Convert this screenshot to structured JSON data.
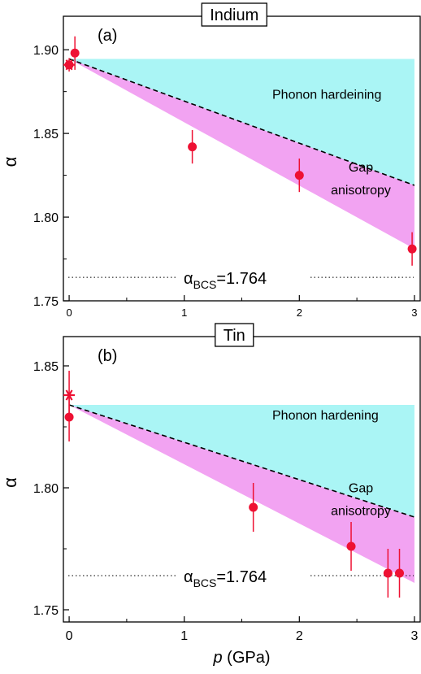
{
  "chart_data": [
    {
      "type": "line",
      "panel_label": "(a)",
      "title": "Indium",
      "xlabel": "",
      "ylabel": "α",
      "xlim": [
        -0.05,
        3.05
      ],
      "ylim": [
        1.75,
        1.92
      ],
      "xticks": [
        0,
        1,
        2,
        3
      ],
      "yticks": [
        1.75,
        1.8,
        1.85,
        1.9
      ],
      "ytick_labels": [
        "1.75",
        "1.80",
        "1.85",
        "1.90"
      ],
      "regions": [
        {
          "name": "Phonon hardeining",
          "color": "#aaf5f5",
          "polygon": [
            [
              0,
              1.8945
            ],
            [
              3,
              1.8945
            ],
            [
              3,
              1.819
            ]
          ]
        },
        {
          "name": "Gap anisotropy",
          "color": "#f2a3f2",
          "polygon": [
            [
              0,
              1.8945
            ],
            [
              3,
              1.819
            ],
            [
              3,
              1.781
            ]
          ]
        }
      ],
      "region_labels": [
        "Phonon hardeining",
        "Gap",
        "anisotropy"
      ],
      "dashed_line": {
        "x": [
          0,
          3
        ],
        "y": [
          1.8945,
          1.819
        ]
      },
      "bcs_line": {
        "y": 1.764,
        "label_main": "α",
        "label_sub": "BCS",
        "label_value": "=1.764"
      },
      "series": [
        {
          "marker": "circle",
          "color": "#ee1133",
          "x": [
            0,
            0.05,
            1.07,
            2.0,
            2.98
          ],
          "y": [
            1.891,
            1.898,
            1.842,
            1.825,
            1.781
          ],
          "yerr": [
            0.004,
            0.01,
            0.01,
            0.01,
            0.01
          ]
        },
        {
          "marker": "star",
          "color": "#ee1133",
          "x": [
            0
          ],
          "y": [
            1.891
          ],
          "yerr": [
            0
          ]
        }
      ]
    },
    {
      "type": "line",
      "panel_label": "(b)",
      "title": "Tin",
      "xlabel": "p (GPa)",
      "xlabel_italic": "p",
      "xlabel_rest": " (GPa)",
      "ylabel": "α",
      "xlim": [
        -0.05,
        3.05
      ],
      "ylim": [
        1.745,
        1.862
      ],
      "xticks": [
        0,
        1,
        2,
        3
      ],
      "yticks": [
        1.75,
        1.8,
        1.85
      ],
      "ytick_labels": [
        "1.75",
        "1.80",
        "1.85"
      ],
      "regions": [
        {
          "name": "Phonon hardening",
          "color": "#aaf5f5",
          "polygon": [
            [
              0,
              1.834
            ],
            [
              3,
              1.834
            ],
            [
              3,
              1.788
            ]
          ]
        },
        {
          "name": "Gap anisotropy",
          "color": "#f2a3f2",
          "polygon": [
            [
              0,
              1.834
            ],
            [
              3,
              1.788
            ],
            [
              3,
              1.761
            ]
          ]
        }
      ],
      "region_labels": [
        "Phonon hardening",
        "Gap",
        "anisotropy"
      ],
      "dashed_line": {
        "x": [
          0,
          3
        ],
        "y": [
          1.834,
          1.788
        ]
      },
      "bcs_line": {
        "y": 1.764,
        "label_main": "α",
        "label_sub": "BCS",
        "label_value": "=1.764"
      },
      "series": [
        {
          "marker": "circle",
          "color": "#ee1133",
          "x": [
            0,
            1.6,
            2.45,
            2.77,
            2.87
          ],
          "y": [
            1.829,
            1.792,
            1.776,
            1.765,
            1.765
          ],
          "yerr": [
            0.01,
            0.01,
            0.01,
            0.01,
            0.01
          ]
        },
        {
          "marker": "star",
          "color": "#ee1133",
          "x": [
            0
          ],
          "y": [
            1.838
          ],
          "yerr": [
            0.01
          ]
        }
      ]
    }
  ]
}
